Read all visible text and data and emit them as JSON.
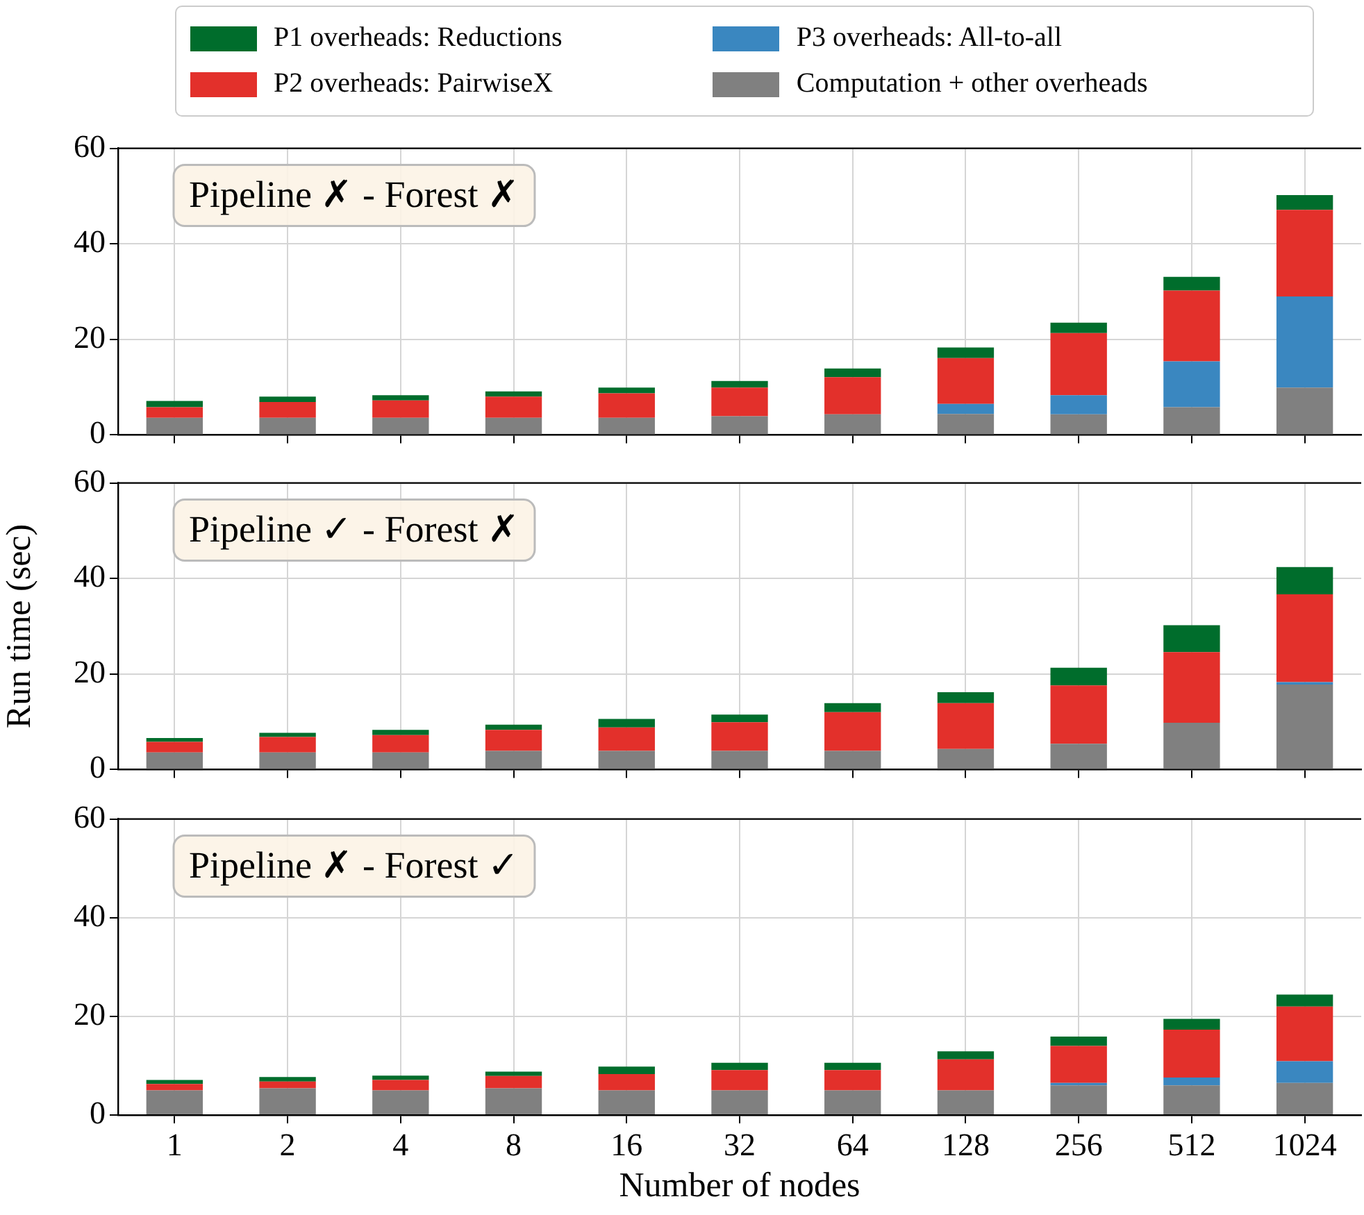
{
  "chart_data": [
    {
      "type": "bar",
      "stacked": true,
      "legend": "top",
      "grid": true,
      "tick_labels": "y",
      "categories": [
        "1",
        "2",
        "4",
        "8",
        "16",
        "32",
        "64",
        "128",
        "256",
        "512",
        "1024"
      ],
      "ylim": [
        0,
        60
      ],
      "yticks": [
        0,
        20,
        40,
        60
      ],
      "annotations": [
        "Pipeline ✗ - Forest ✗"
      ],
      "series": [
        {
          "name": "Computation + other overheads",
          "color": "#808080",
          "values": [
            3.6,
            3.6,
            3.6,
            3.6,
            3.6,
            3.9,
            4.3,
            4.4,
            4.3,
            5.8,
            9.9
          ]
        },
        {
          "name": "P3 overheads: All-to-all",
          "color": "#3a87c0",
          "values": [
            0,
            0,
            0,
            0,
            0,
            0,
            0,
            2.1,
            4.0,
            9.6,
            19.1
          ]
        },
        {
          "name": "P2 overheads: PairwiseX",
          "color": "#e3302b",
          "values": [
            2.2,
            3.3,
            3.6,
            4.4,
            5.1,
            6.0,
            7.8,
            9.6,
            13.0,
            14.8,
            18.1
          ]
        },
        {
          "name": "P1 overheads: Reductions",
          "color": "#006d2c",
          "values": [
            1.3,
            1.1,
            1.1,
            1.1,
            1.2,
            1.4,
            1.8,
            2.2,
            2.2,
            2.9,
            3.1
          ]
        }
      ]
    },
    {
      "type": "bar",
      "stacked": true,
      "grid": true,
      "tick_labels": "y",
      "ylabel": "Run time (sec)",
      "categories": [
        "1",
        "2",
        "4",
        "8",
        "16",
        "32",
        "64",
        "128",
        "256",
        "512",
        "1024"
      ],
      "ylim": [
        0,
        60
      ],
      "yticks": [
        0,
        20,
        40,
        60
      ],
      "annotations": [
        "Pipeline ✓ - Forest ✗"
      ],
      "series": [
        {
          "color": "#808080",
          "values": [
            3.6,
            3.6,
            3.6,
            3.9,
            3.9,
            3.9,
            3.9,
            4.3,
            5.4,
            9.8,
            17.8
          ]
        },
        {
          "color": "#3a87c0",
          "values": [
            0,
            0,
            0,
            0,
            0,
            0,
            0,
            0,
            0,
            0,
            0.5
          ]
        },
        {
          "color": "#e3302b",
          "values": [
            2.2,
            3.2,
            3.6,
            4.4,
            4.9,
            6.0,
            8.1,
            9.6,
            12.2,
            14.8,
            18.4
          ]
        },
        {
          "color": "#006d2c",
          "values": [
            0.8,
            0.9,
            1.1,
            1.1,
            1.8,
            1.6,
            1.9,
            2.3,
            3.7,
            5.6,
            5.7
          ]
        }
      ]
    },
    {
      "type": "bar",
      "stacked": true,
      "grid": true,
      "xlabel": "Number of nodes",
      "categories": [
        "1",
        "2",
        "4",
        "8",
        "16",
        "32",
        "64",
        "128",
        "256",
        "512",
        "1024"
      ],
      "ylim": [
        0,
        60
      ],
      "yticks": [
        0,
        20,
        40,
        60
      ],
      "annotations": [
        "Pipeline ✗ - Forest ✓"
      ],
      "series": [
        {
          "color": "#808080",
          "values": [
            5.0,
            5.4,
            5.0,
            5.4,
            5.0,
            5.0,
            5.0,
            5.0,
            6.0,
            6.0,
            6.5
          ]
        },
        {
          "color": "#3a87c0",
          "values": [
            0,
            0,
            0,
            0,
            0,
            0,
            0,
            0,
            0.5,
            1.6,
            4.4
          ]
        },
        {
          "color": "#e3302b",
          "values": [
            1.3,
            1.4,
            2.1,
            2.5,
            3.3,
            4.1,
            4.1,
            6.3,
            7.5,
            9.7,
            11.1
          ]
        },
        {
          "color": "#006d2c",
          "values": [
            0.8,
            0.9,
            0.9,
            0.9,
            1.5,
            1.5,
            1.5,
            1.6,
            1.9,
            2.2,
            2.4
          ]
        }
      ]
    }
  ]
}
